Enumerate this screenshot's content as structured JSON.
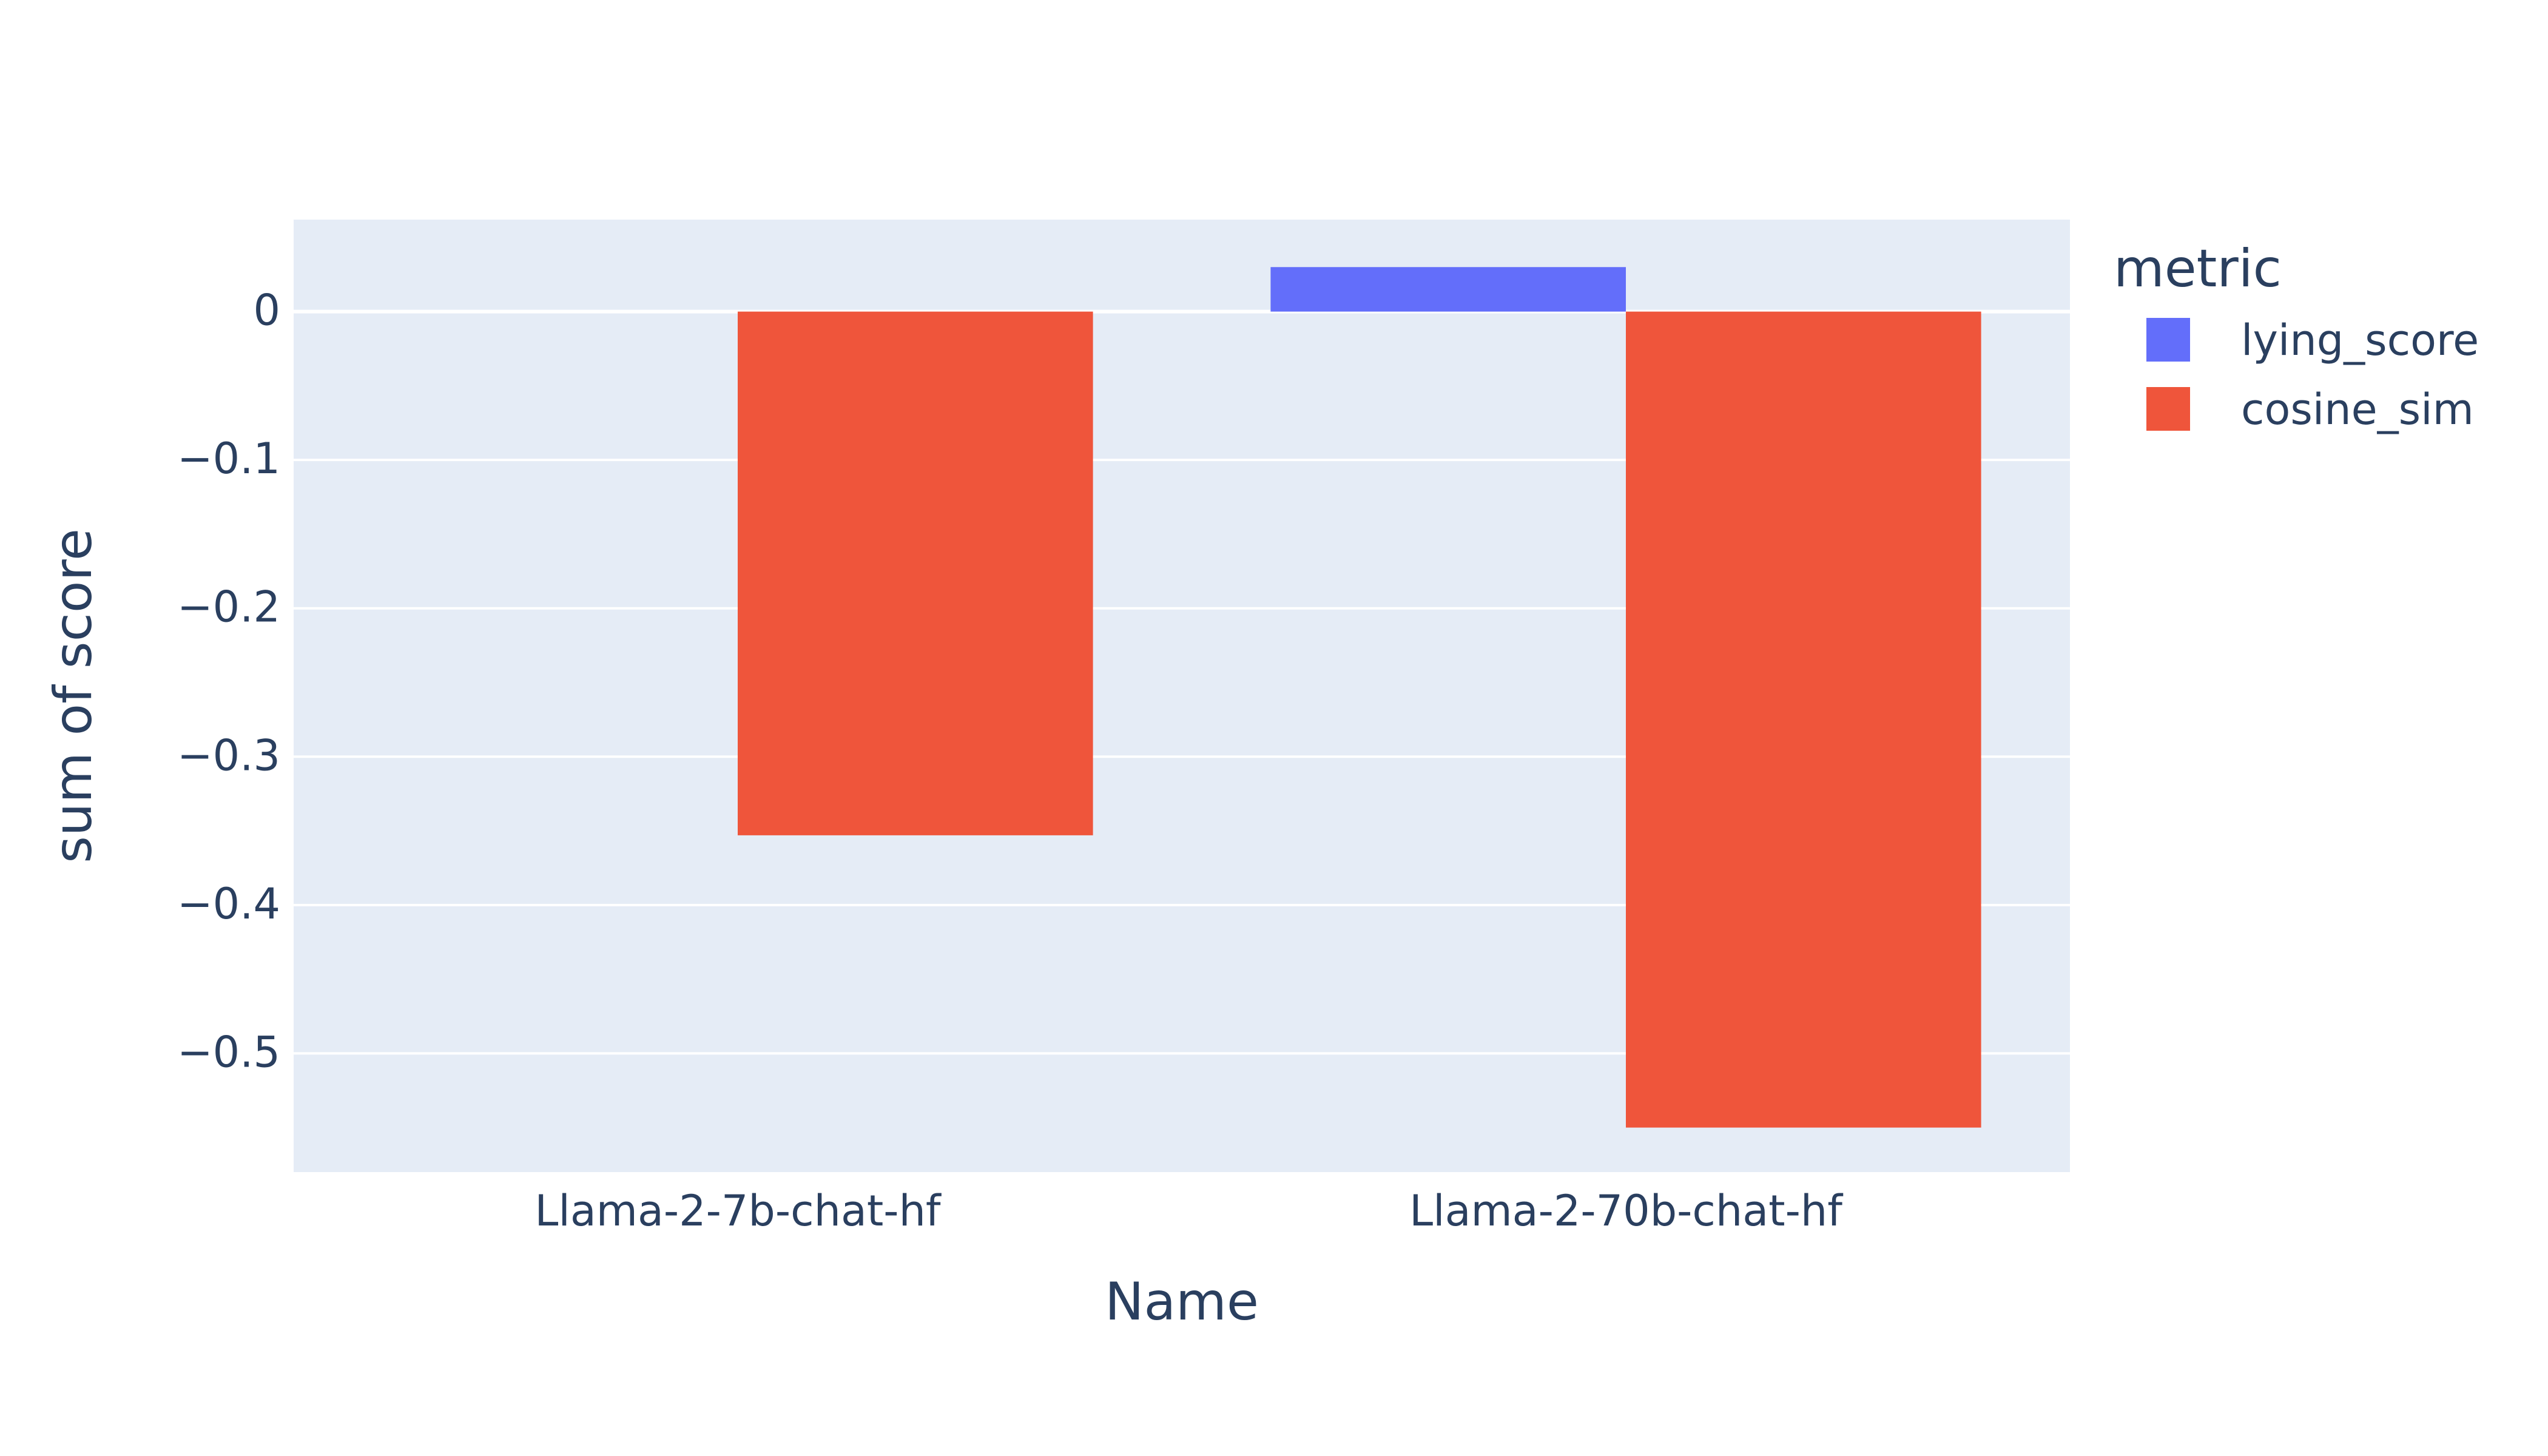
{
  "chart_data": {
    "type": "bar",
    "barmode": "group",
    "categories": [
      "Llama-2-7b-chat-hf",
      "Llama-2-70b-chat-hf"
    ],
    "series": [
      {
        "name": "lying_score",
        "color": "#636efa",
        "values": [
          0.0,
          0.03
        ]
      },
      {
        "name": "cosine_sim",
        "color": "#ef553b",
        "values": [
          -0.353,
          -0.55
        ]
      }
    ],
    "xlabel": "Name",
    "ylabel": "sum of score",
    "ylim": [
      -0.58,
      0.062
    ],
    "yticks": [
      0,
      -0.1,
      -0.2,
      -0.3,
      -0.4,
      -0.5
    ],
    "ytick_labels": [
      "0",
      "−0.1",
      "−0.2",
      "−0.3",
      "−0.4",
      "−0.5"
    ],
    "legend": {
      "title": "metric",
      "position": "right-top"
    },
    "grid": true,
    "plot_bgcolor": "#e5ecf6"
  }
}
